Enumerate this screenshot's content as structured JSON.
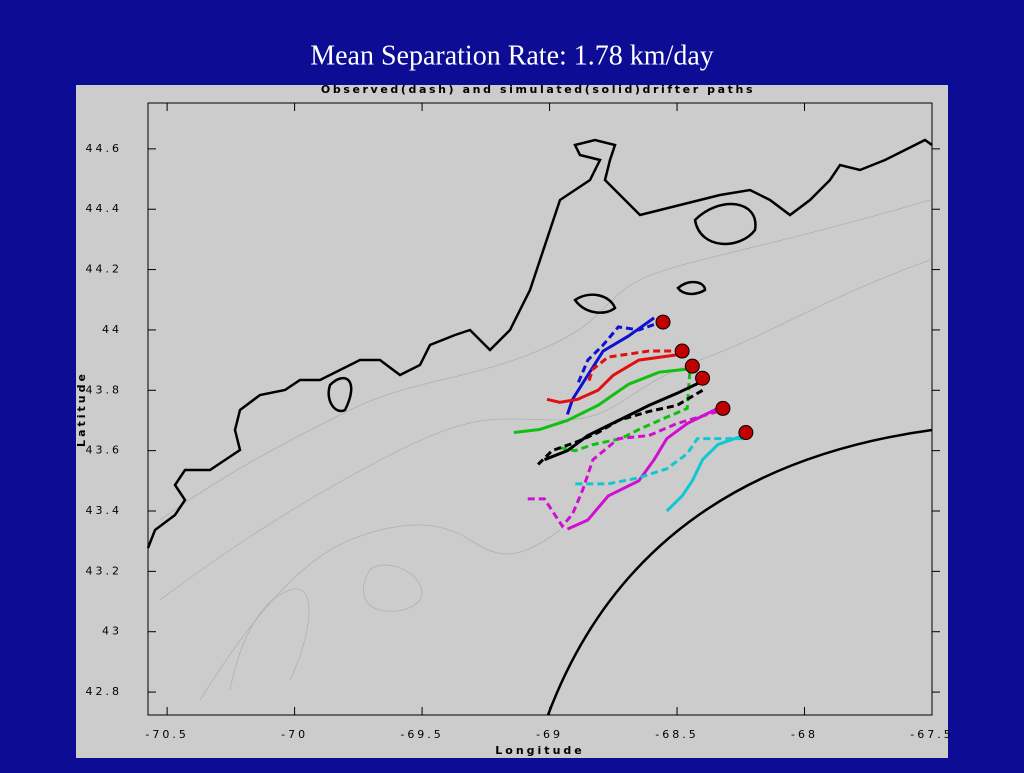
{
  "chart_data": {
    "type": "line",
    "title": "Mean Separation Rate: 1.78 km/day",
    "subtitle": "Observed(dash) and simulated(solid)drifter paths",
    "x_label": "Longitude",
    "y_label": "Latitude",
    "xlim": [
      -70.575,
      -67.5
    ],
    "ylim": [
      42.724,
      44.752
    ],
    "xticks": [
      -70.5,
      -70,
      -69.5,
      -69,
      -68.5,
      -68,
      -67.5
    ],
    "yticks": [
      42.8,
      43,
      43.2,
      43.4,
      43.6,
      43.8,
      44,
      44.2,
      44.4,
      44.6
    ],
    "series": [
      {
        "color": "#1010d0",
        "style": "dashed",
        "x": [
          -68.55,
          -68.65,
          -68.73,
          -68.79,
          -68.85,
          -68.89
        ],
        "values": [
          44.03,
          44.0,
          44.01,
          43.95,
          43.9,
          43.82
        ]
      },
      {
        "color": "#1010d0",
        "style": "solid",
        "x": [
          -68.59,
          -68.69,
          -68.79,
          -68.85,
          -68.91,
          -68.93
        ],
        "values": [
          44.04,
          43.98,
          43.93,
          43.85,
          43.77,
          43.72
        ]
      },
      {
        "color": "#e01010",
        "style": "dashed",
        "x": [
          -68.48,
          -68.61,
          -68.77,
          -68.83,
          -68.85
        ],
        "values": [
          43.93,
          43.93,
          43.91,
          43.87,
          43.82
        ]
      },
      {
        "color": "#e01010",
        "style": "solid",
        "x": [
          -68.48,
          -68.65,
          -68.75,
          -68.81,
          -68.89,
          -68.96,
          -69.01
        ],
        "values": [
          43.92,
          43.9,
          43.85,
          43.8,
          43.77,
          43.76,
          43.77
        ]
      },
      {
        "color": "#10c010",
        "style": "solid",
        "x": [
          -68.46,
          -68.57,
          -68.69,
          -68.81,
          -68.93,
          -69.04,
          -69.14
        ],
        "values": [
          43.87,
          43.86,
          43.82,
          43.75,
          43.7,
          43.67,
          43.66
        ]
      },
      {
        "color": "#10c010",
        "style": "dashed",
        "x": [
          -68.45,
          -68.46,
          -68.57,
          -68.65,
          -68.72,
          -68.83,
          -68.9,
          -68.96
        ],
        "values": [
          43.86,
          43.74,
          43.7,
          43.67,
          43.64,
          43.62,
          43.6,
          43.61
        ]
      },
      {
        "color": "#000000",
        "style": "solid",
        "x": [
          -68.4,
          -68.5,
          -68.61,
          -68.73,
          -68.85,
          -68.93,
          -69.02
        ],
        "values": [
          43.83,
          43.79,
          43.75,
          43.7,
          43.65,
          43.6,
          43.57
        ]
      },
      {
        "color": "#000000",
        "style": "dashed",
        "x": [
          -68.4,
          -68.5,
          -68.61,
          -68.73,
          -68.81,
          -68.89,
          -68.99,
          -69.05
        ],
        "values": [
          43.8,
          43.75,
          43.73,
          43.7,
          43.66,
          43.63,
          43.6,
          43.55
        ]
      },
      {
        "color": "#d010d0",
        "style": "solid",
        "x": [
          -68.34,
          -68.46,
          -68.54,
          -68.59,
          -68.65,
          -68.77,
          -68.85,
          -68.93
        ],
        "values": [
          43.74,
          43.69,
          43.64,
          43.57,
          43.5,
          43.45,
          43.37,
          43.34
        ]
      },
      {
        "color": "#d010d0",
        "style": "dashed",
        "x": [
          -68.34,
          -68.5,
          -68.61,
          -68.73,
          -68.83,
          -68.87,
          -68.91,
          -68.95,
          -69.02,
          -69.1
        ],
        "values": [
          43.73,
          43.69,
          43.65,
          43.64,
          43.57,
          43.47,
          43.39,
          43.35,
          43.44,
          43.44
        ]
      },
      {
        "color": "#10c8d0",
        "style": "solid",
        "x": [
          -68.24,
          -68.34,
          -68.4,
          -68.44,
          -68.48,
          -68.54
        ],
        "values": [
          43.65,
          43.62,
          43.57,
          43.5,
          43.45,
          43.4
        ]
      },
      {
        "color": "#10c8d0",
        "style": "dashed",
        "x": [
          -68.24,
          -68.42,
          -68.46,
          -68.54,
          -68.65,
          -68.77,
          -68.91
        ],
        "values": [
          43.64,
          43.64,
          43.59,
          43.54,
          43.51,
          43.49,
          43.49
        ]
      }
    ],
    "release_points": {
      "color": "#c00000",
      "x": [
        -68.555,
        -68.48,
        -68.44,
        -68.4,
        -68.32,
        -68.23
      ],
      "y": [
        44.026,
        43.93,
        43.88,
        43.84,
        43.74,
        43.66
      ]
    }
  }
}
